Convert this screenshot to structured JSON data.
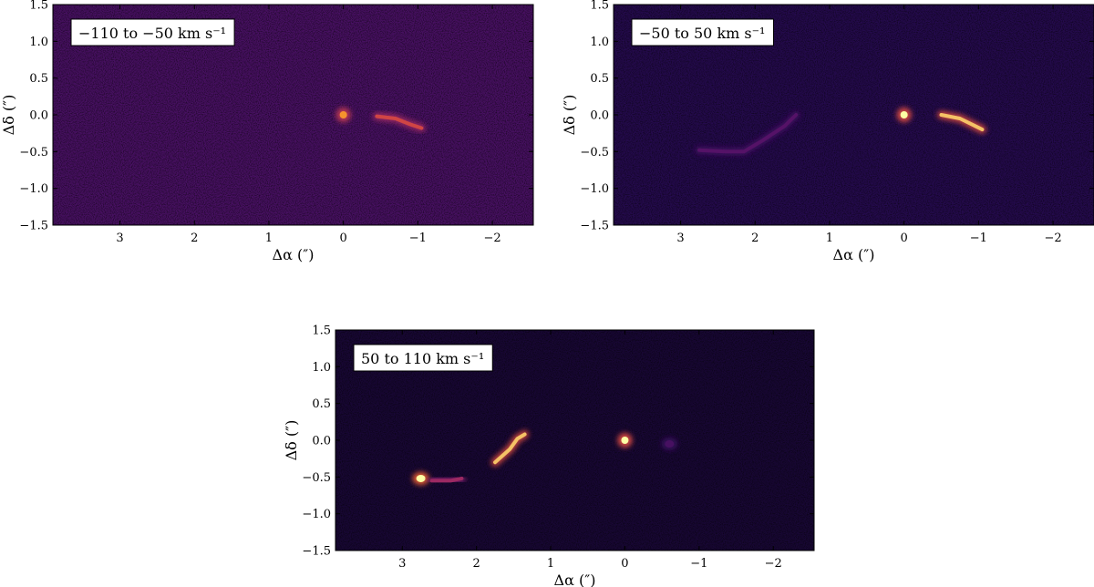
{
  "chart_data": [
    {
      "type": "heatmap",
      "panel_label": "−110 to −50 km s⁻¹",
      "xlabel": "Δα (″)",
      "ylabel": "Δδ (″)",
      "xlim": [
        3.9,
        -2.55
      ],
      "ylim": [
        -1.5,
        1.5
      ],
      "xticks": [
        3,
        2,
        1,
        0,
        -1,
        -2
      ],
      "yticks": [
        -1.5,
        -1.0,
        -0.5,
        0.0,
        0.5,
        1.0,
        1.5
      ],
      "grid": false,
      "colormap": "inferno",
      "features": [
        {
          "kind": "point",
          "x": 0.0,
          "y": 0.0,
          "intensity": 0.9
        },
        {
          "kind": "arc",
          "points": [
            [
              -0.45,
              -0.02
            ],
            [
              -0.7,
              -0.05
            ],
            [
              -0.9,
              -0.13
            ],
            [
              -1.05,
              -0.18
            ]
          ],
          "intensity": 0.75
        }
      ]
    },
    {
      "type": "heatmap",
      "panel_label": "−50 to 50 km s⁻¹",
      "xlabel": "Δα (″)",
      "ylabel": "Δδ (″)",
      "xlim": [
        3.9,
        -2.55
      ],
      "ylim": [
        -1.5,
        1.5
      ],
      "xticks": [
        3,
        2,
        1,
        0,
        -1,
        -2
      ],
      "yticks": [
        -1.5,
        -1.0,
        -0.5,
        0.0,
        0.5,
        1.0,
        1.5
      ],
      "grid": false,
      "colormap": "inferno",
      "features": [
        {
          "kind": "point",
          "x": 0.0,
          "y": 0.0,
          "intensity": 1.0
        },
        {
          "kind": "arc",
          "points": [
            [
              -0.5,
              0.0
            ],
            [
              -0.75,
              -0.05
            ],
            [
              -0.95,
              -0.15
            ],
            [
              -1.05,
              -0.2
            ]
          ],
          "intensity": 0.95
        },
        {
          "kind": "arc",
          "points": [
            [
              2.75,
              -0.48
            ],
            [
              2.4,
              -0.5
            ],
            [
              2.15,
              -0.5
            ],
            [
              1.9,
              -0.35
            ],
            [
              1.6,
              -0.15
            ],
            [
              1.45,
              0.0
            ]
          ],
          "intensity": 0.35
        }
      ]
    },
    {
      "type": "heatmap",
      "panel_label": "50 to 110 km s⁻¹",
      "xlabel": "Δα (″)",
      "ylabel": "Δδ (″)",
      "xlim": [
        3.9,
        -2.55
      ],
      "ylim": [
        -1.5,
        1.5
      ],
      "xticks": [
        3,
        2,
        1,
        0,
        -1,
        -2
      ],
      "yticks": [
        -1.5,
        -1.0,
        -0.5,
        0.0,
        0.5,
        1.0,
        1.5
      ],
      "grid": false,
      "colormap": "inferno",
      "features": [
        {
          "kind": "point",
          "x": 0.0,
          "y": 0.0,
          "intensity": 1.0
        },
        {
          "kind": "blob",
          "x": -0.6,
          "y": -0.05,
          "intensity": 0.3
        },
        {
          "kind": "blob",
          "x": 2.75,
          "y": -0.52,
          "intensity": 1.0
        },
        {
          "kind": "arc",
          "points": [
            [
              2.6,
              -0.55
            ],
            [
              2.35,
              -0.55
            ],
            [
              2.2,
              -0.52
            ]
          ],
          "intensity": 0.6
        },
        {
          "kind": "arc",
          "points": [
            [
              1.75,
              -0.3
            ],
            [
              1.55,
              -0.12
            ],
            [
              1.45,
              0.02
            ],
            [
              1.35,
              0.08
            ]
          ],
          "intensity": 0.95
        }
      ]
    }
  ]
}
